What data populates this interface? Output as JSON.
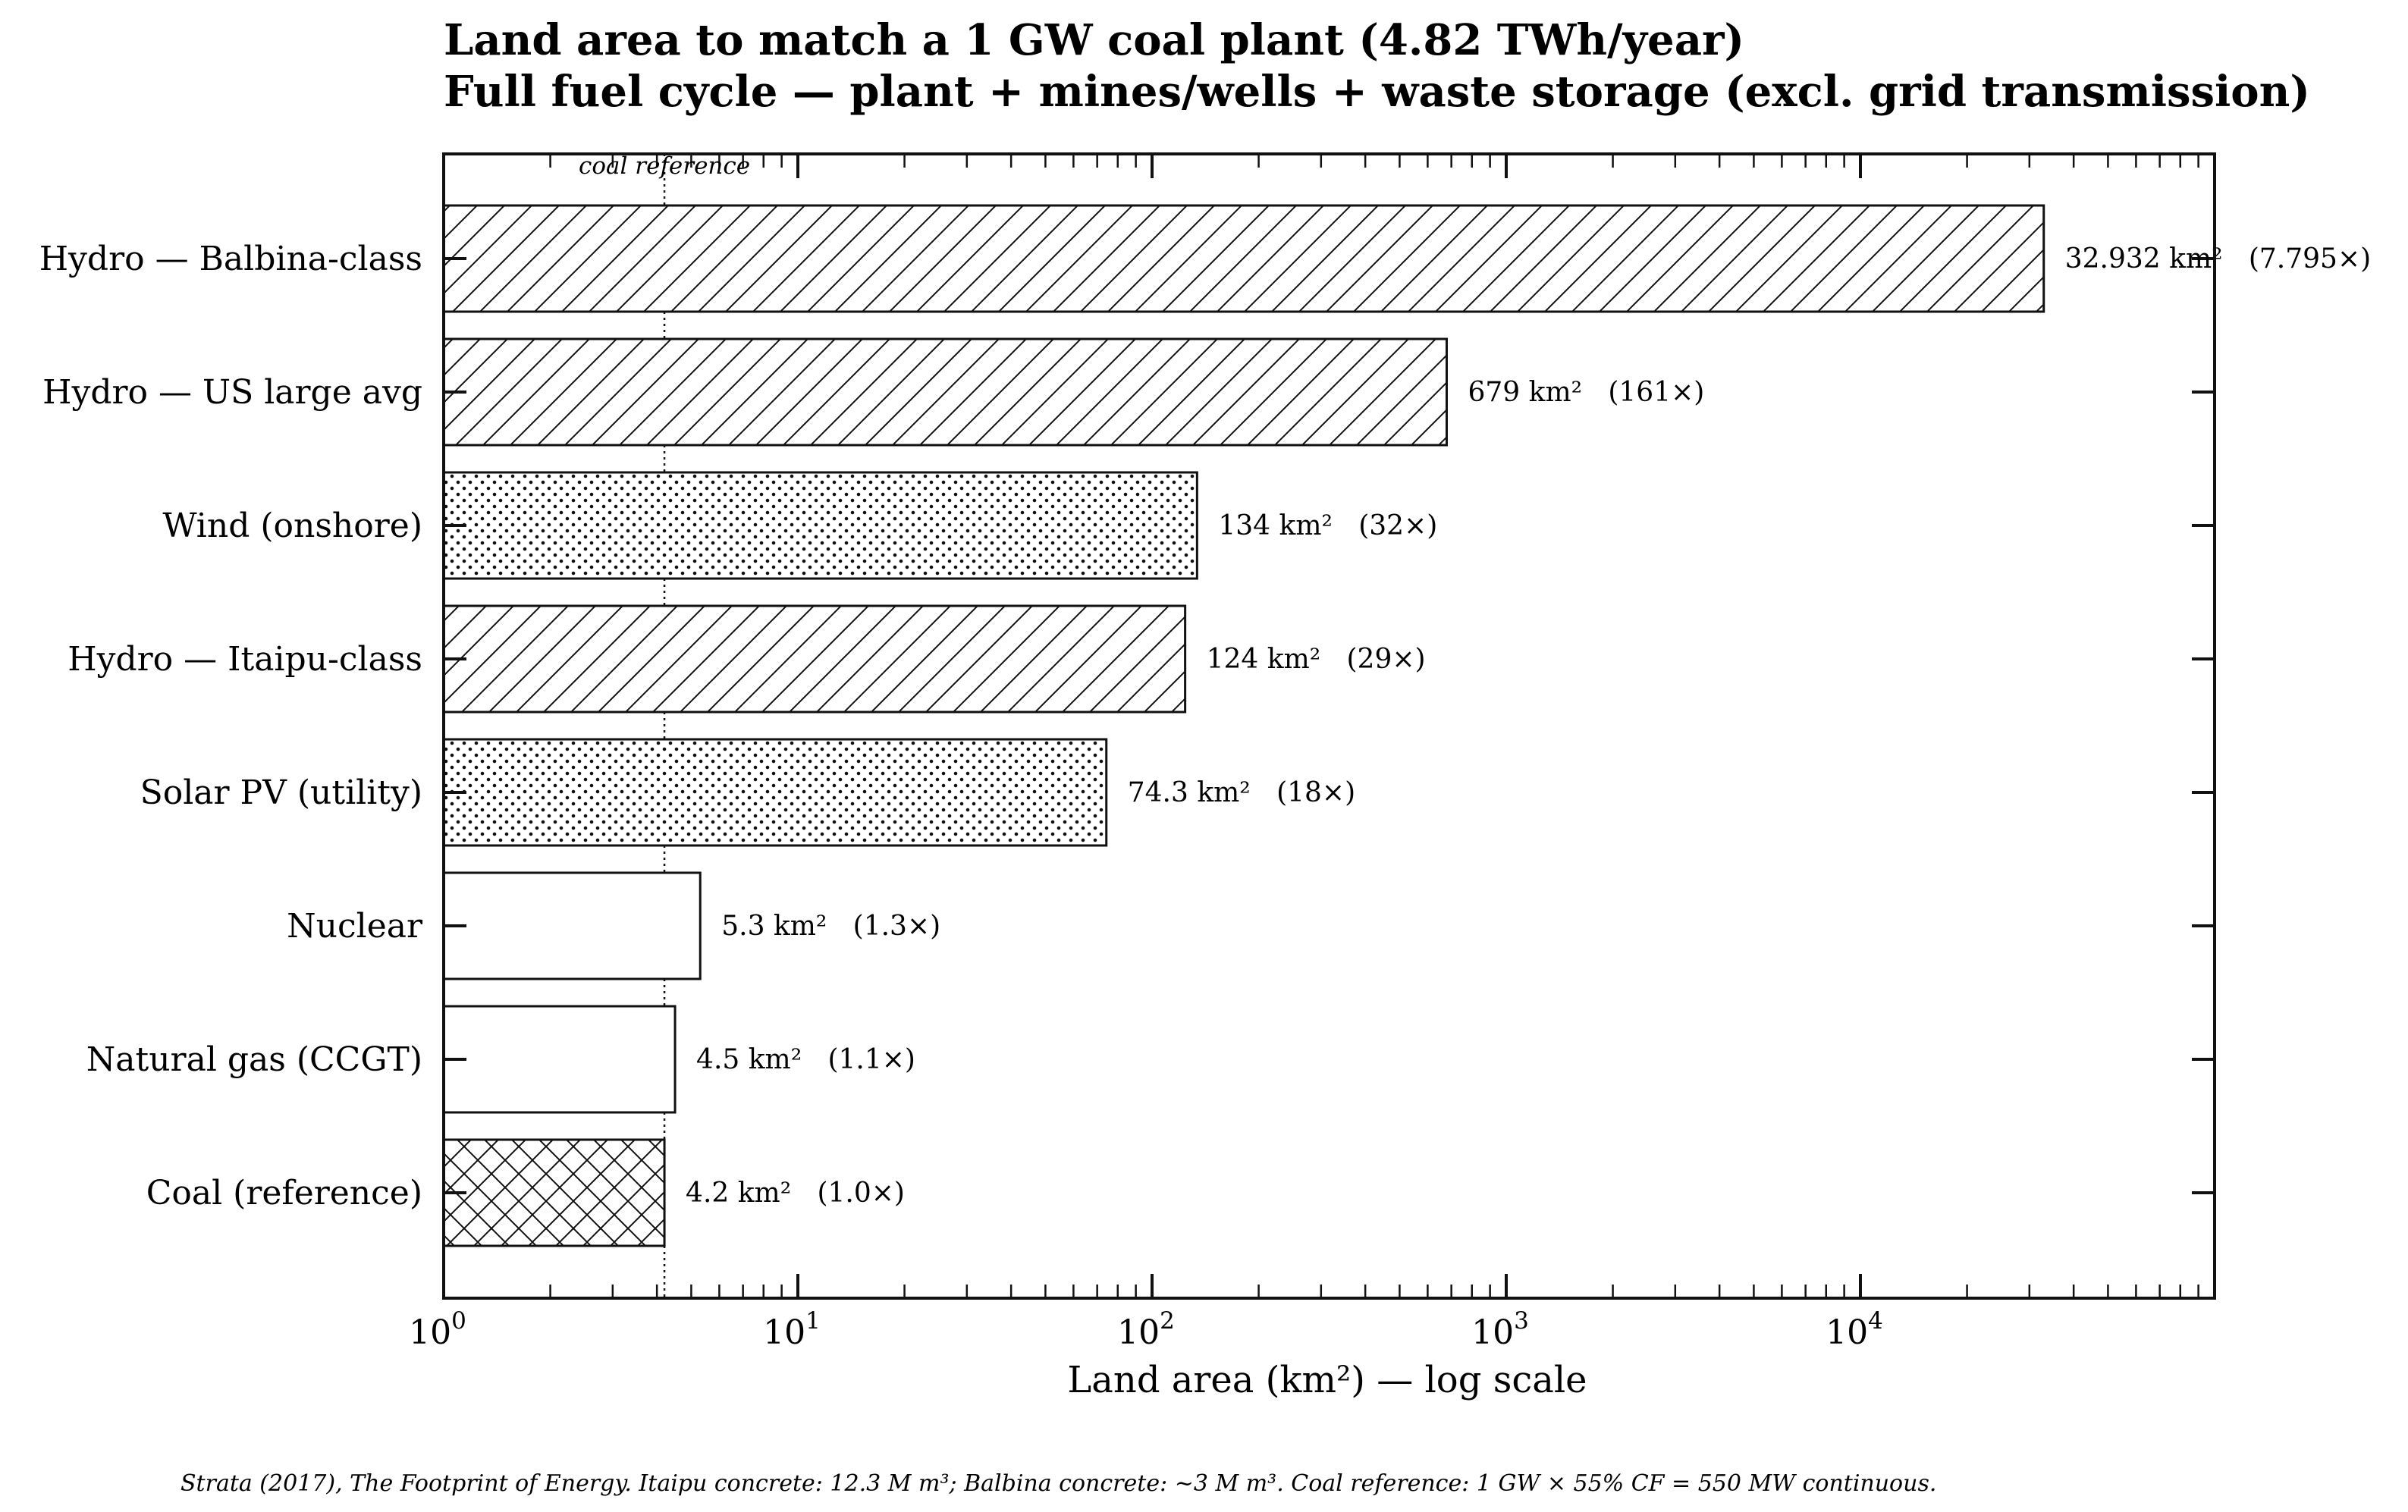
{
  "chart_data": {
    "type": "bar",
    "orientation": "horizontal",
    "title_line1": "Land area to match a 1 GW coal plant (4.82 TWh/year)",
    "title_line2": "Full fuel cycle — plant + mines/wells + waste storage (excl. grid transmission)",
    "xlabel": "Land area (km²) — log scale",
    "x_scale": "log",
    "xlim": [
      1,
      90000
    ],
    "x_ticks": [
      1,
      10,
      100,
      1000,
      10000
    ],
    "x_tick_labels": [
      {
        "base": "10",
        "exp": "0"
      },
      {
        "base": "10",
        "exp": "1"
      },
      {
        "base": "10",
        "exp": "2"
      },
      {
        "base": "10",
        "exp": "3"
      },
      {
        "base": "10",
        "exp": "4"
      }
    ],
    "reference_line": {
      "value": 4.2,
      "label": "coal reference"
    },
    "categories": [
      "Hydro — Balbina-class",
      "Hydro — US large avg",
      "Wind (onshore)",
      "Hydro — Itaipu-class",
      "Solar PV (utility)",
      "Nuclear",
      "Natural gas (CCGT)",
      "Coal (reference)"
    ],
    "values": [
      32932,
      679,
      134,
      124,
      74.3,
      5.3,
      4.5,
      4.2
    ],
    "value_labels": [
      "32.932 km²   (7.795×)",
      "679 km²   (161×)",
      "134 km²   (32×)",
      "124 km²   (29×)",
      "74.3 km²   (18×)",
      "5.3 km²   (1.3×)",
      "4.5 km²   (1.1×)",
      "4.2 km²   (1.0×)"
    ],
    "patterns": [
      "diagonal",
      "diagonal",
      "dots",
      "diagonal",
      "dots",
      "none",
      "none",
      "crosshatch"
    ],
    "grid": false,
    "legend": "none",
    "colors": {
      "edge": "#111111",
      "fill": "#ffffff"
    }
  },
  "footnote": "Strata (2017), The Footprint of Energy. Itaipu concrete: 12.3 M m³; Balbina concrete: ~3 M m³. Coal reference: 1 GW × 55% CF = 550 MW continuous."
}
